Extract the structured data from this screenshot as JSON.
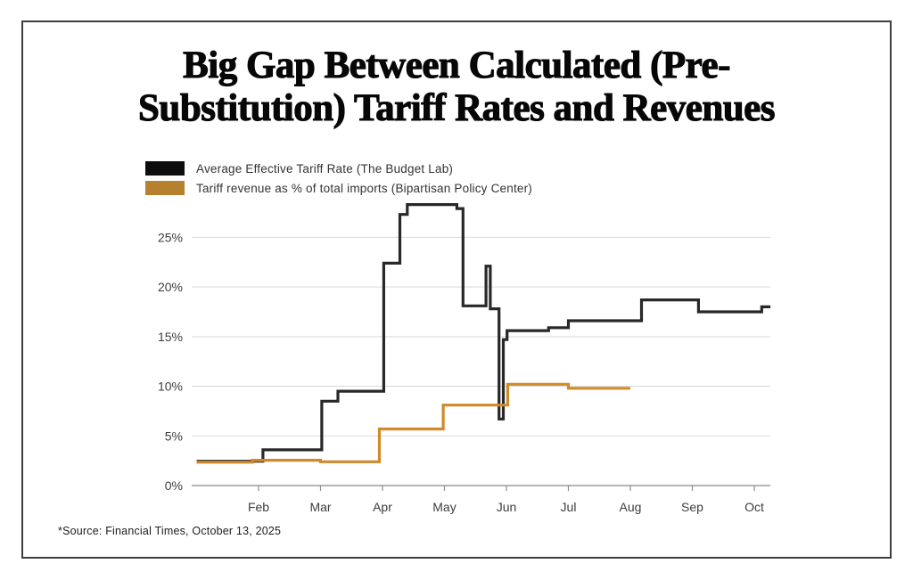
{
  "title": {
    "line1": "Big Gap Between Calculated (Pre-",
    "line2": "Substitution) Tariff Rates and Revenues"
  },
  "legend": {
    "items": [
      {
        "label": "Average Effective Tariff Rate (The Budget Lab)",
        "swatch_color": "#0d0d0d"
      },
      {
        "label": "Tariff revenue as % of total imports (Bipartisan Policy Center)",
        "swatch_color": "#b5812f"
      }
    ]
  },
  "source_note": "*Source: Financial Times, October 13, 2025",
  "colors": {
    "aetr_line": "#282828",
    "revenue_line": "#d18a2a",
    "gridline": "#d9d9d9",
    "axis_line": "#9b9b9b",
    "tick": "#8f8f8f",
    "axis_text": "#3d3d3d",
    "frame_border": "#3e3e3e"
  },
  "chart_data": {
    "type": "line",
    "subtype": "step-after",
    "title": "Big Gap Between Calculated (Pre-Substitution) Tariff Rates and Revenues",
    "xlabel": "",
    "ylabel": "",
    "x_unit": "months since Jan 1, 2025 (0 = Jan 1, 1 = Feb 1, ...)",
    "y_unit": "percent",
    "xlim": [
      -0.08,
      9.26
    ],
    "ylim": [
      0,
      29.5
    ],
    "grid": "horizontal",
    "legend_position": "top-left",
    "x_ticks": [
      {
        "pos": 1,
        "label": "Feb"
      },
      {
        "pos": 2,
        "label": "Mar"
      },
      {
        "pos": 3,
        "label": "Apr"
      },
      {
        "pos": 4,
        "label": "May"
      },
      {
        "pos": 5,
        "label": "Jun"
      },
      {
        "pos": 6,
        "label": "Jul"
      },
      {
        "pos": 7,
        "label": "Aug"
      },
      {
        "pos": 8,
        "label": "Sep"
      },
      {
        "pos": 9,
        "label": "Oct"
      }
    ],
    "y_ticks": [
      {
        "value": 0,
        "label": "0%"
      },
      {
        "value": 5,
        "label": "5%"
      },
      {
        "value": 10,
        "label": "10%"
      },
      {
        "value": 15,
        "label": "15%"
      },
      {
        "value": 20,
        "label": "20%"
      },
      {
        "value": 25,
        "label": "25%"
      }
    ],
    "series": [
      {
        "name": "Average Effective Tariff Rate (The Budget Lab)",
        "color": "#282828",
        "line_width": 3.2,
        "points": [
          [
            0.0,
            2.45
          ],
          [
            1.07,
            3.6
          ],
          [
            2.02,
            8.5
          ],
          [
            2.28,
            9.5
          ],
          [
            3.02,
            22.4
          ],
          [
            3.28,
            27.3
          ],
          [
            3.4,
            28.3
          ],
          [
            4.2,
            27.9
          ],
          [
            4.3,
            18.1
          ],
          [
            4.67,
            22.1
          ],
          [
            4.74,
            17.8
          ],
          [
            4.88,
            6.7
          ],
          [
            4.95,
            14.7
          ],
          [
            5.01,
            15.6
          ],
          [
            5.68,
            15.9
          ],
          [
            6.0,
            16.6
          ],
          [
            7.18,
            18.7
          ],
          [
            8.1,
            17.5
          ],
          [
            9.12,
            18.0
          ],
          [
            9.26,
            18.0
          ]
        ]
      },
      {
        "name": "Tariff revenue as % of total imports (Bipartisan Policy Center)",
        "color": "#d18a2a",
        "line_width": 3.2,
        "points": [
          [
            0.0,
            2.35
          ],
          [
            0.9,
            2.55
          ],
          [
            2.0,
            2.4
          ],
          [
            2.95,
            5.7
          ],
          [
            3.98,
            8.1
          ],
          [
            5.02,
            10.2
          ],
          [
            6.0,
            9.8
          ],
          [
            7.0,
            9.8
          ]
        ]
      }
    ]
  }
}
